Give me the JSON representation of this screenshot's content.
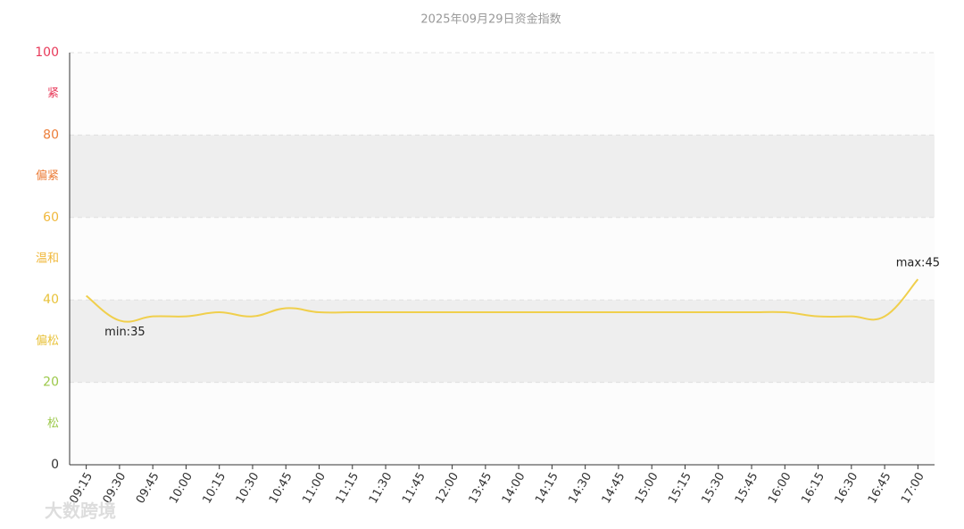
{
  "chart_data": {
    "type": "line",
    "title": "2025年09月29日资金指数",
    "categories": [
      "09:15",
      "09:30",
      "09:45",
      "10:00",
      "10:15",
      "10:30",
      "10:45",
      "11:00",
      "11:15",
      "11:30",
      "11:45",
      "12:00",
      "13:45",
      "14:00",
      "14:15",
      "14:30",
      "14:45",
      "15:00",
      "15:15",
      "15:30",
      "15:45",
      "16:00",
      "16:15",
      "16:30",
      "16:45",
      "17:00"
    ],
    "series": [
      {
        "name": "资金指数",
        "color": "#f0cf4c",
        "values": [
          41,
          35,
          36,
          36,
          37,
          36,
          38,
          37,
          37,
          37,
          37,
          37,
          37,
          37,
          37,
          37,
          37,
          37,
          37,
          37,
          37,
          37,
          36,
          36,
          36,
          45
        ]
      }
    ],
    "annotations": {
      "min": "min:35",
      "max": "max:45"
    },
    "ylim": [
      0,
      100
    ],
    "yticks": [
      0,
      20,
      40,
      60,
      80,
      100
    ],
    "grid": true,
    "bands": [
      {
        "from": 80,
        "to": 100,
        "label": "紧",
        "color": "#e83a5a",
        "fill": "#fcfcfc"
      },
      {
        "from": 60,
        "to": 80,
        "label": "偏紧",
        "color": "#ec7e3a",
        "fill": "#eeeeee"
      },
      {
        "from": 40,
        "to": 60,
        "label": "温和",
        "color": "#f0b83c",
        "fill": "#fcfcfc"
      },
      {
        "from": 20,
        "to": 40,
        "label": "偏松",
        "color": "#e8c23a",
        "fill": "#eeeeee"
      },
      {
        "from": 0,
        "to": 20,
        "label": "松",
        "color": "#9cc84a",
        "fill": "#fcfcfc"
      }
    ],
    "watermark": "大数跨境"
  }
}
